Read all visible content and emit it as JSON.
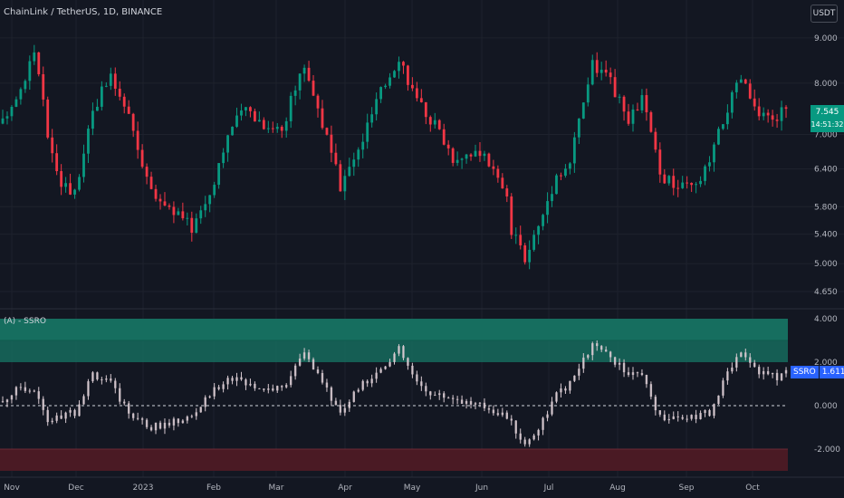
{
  "header": {
    "symbol_title": "ChainLink / TetherUS, 1D, BINANCE",
    "currency_button": "USDT"
  },
  "price_axis": {
    "ticks": [
      "9.000",
      "8.000",
      "7.000",
      "6.400",
      "5.800",
      "5.400",
      "5.000",
      "4.650"
    ]
  },
  "last_price": {
    "value": "7.545",
    "countdown": "14:51:32"
  },
  "indicator": {
    "title": "(A) - SSRO",
    "name": "SSRO",
    "value": "1.611",
    "ticks": [
      "4.000",
      "2.000",
      "0.000",
      "-2.000"
    ]
  },
  "time_axis": [
    "Nov",
    "Dec",
    "2023",
    "Feb",
    "Mar",
    "Apr",
    "May",
    "Jun",
    "Jul",
    "Aug",
    "Sep",
    "Oct"
  ],
  "colors": {
    "background": "#131722",
    "up": "#089981",
    "down": "#f23645",
    "osc_bar": "#d6c8cf",
    "upper_zone": "#166e5f",
    "lower_zone": "#4a1a24",
    "badge": "#2962ff"
  },
  "chart_data": {
    "type": "candlestick",
    "price_path": [
      [
        0,
        7.2
      ],
      [
        4,
        7.9
      ],
      [
        7,
        8.7
      ],
      [
        10,
        7.0
      ],
      [
        13,
        6.2
      ],
      [
        16,
        6.0
      ],
      [
        20,
        7.5
      ],
      [
        24,
        8.1
      ],
      [
        28,
        7.3
      ],
      [
        33,
        6.0
      ],
      [
        37,
        5.8
      ],
      [
        42,
        5.5
      ],
      [
        46,
        6.0
      ],
      [
        50,
        7.0
      ],
      [
        54,
        7.5
      ],
      [
        58,
        7.2
      ],
      [
        62,
        7.1
      ],
      [
        67,
        8.4
      ],
      [
        71,
        7.2
      ],
      [
        75,
        6.1
      ],
      [
        79,
        6.7
      ],
      [
        83,
        7.6
      ],
      [
        88,
        8.6
      ],
      [
        92,
        7.6
      ],
      [
        96,
        7.2
      ],
      [
        100,
        6.6
      ],
      [
        104,
        6.7
      ],
      [
        108,
        6.5
      ],
      [
        112,
        5.9
      ],
      [
        113,
        5.4
      ],
      [
        116,
        5.1
      ],
      [
        119,
        5.5
      ],
      [
        123,
        6.3
      ],
      [
        126,
        6.5
      ],
      [
        131,
        8.4
      ],
      [
        135,
        8.0
      ],
      [
        139,
        7.2
      ],
      [
        142,
        7.7
      ],
      [
        146,
        6.3
      ],
      [
        150,
        6.1
      ],
      [
        154,
        6.1
      ],
      [
        157,
        6.5
      ],
      [
        161,
        7.5
      ],
      [
        164,
        8.1
      ],
      [
        168,
        7.3
      ],
      [
        172,
        7.3
      ],
      [
        174,
        7.6
      ]
    ],
    "oscillator_path": [
      [
        0,
        0.2
      ],
      [
        4,
        0.9
      ],
      [
        7,
        0.7
      ],
      [
        10,
        -0.7
      ],
      [
        13,
        -0.5
      ],
      [
        16,
        -0.3
      ],
      [
        20,
        1.5
      ],
      [
        24,
        1.0
      ],
      [
        28,
        -0.3
      ],
      [
        33,
        -1.0
      ],
      [
        37,
        -0.8
      ],
      [
        42,
        -0.5
      ],
      [
        46,
        0.5
      ],
      [
        50,
        1.3
      ],
      [
        54,
        1.0
      ],
      [
        58,
        0.8
      ],
      [
        62,
        0.8
      ],
      [
        67,
        2.4
      ],
      [
        71,
        1.0
      ],
      [
        75,
        -0.3
      ],
      [
        79,
        0.8
      ],
      [
        83,
        1.5
      ],
      [
        88,
        2.6
      ],
      [
        92,
        1.0
      ],
      [
        96,
        0.5
      ],
      [
        100,
        0.4
      ],
      [
        104,
        0.1
      ],
      [
        108,
        -0.1
      ],
      [
        112,
        -0.5
      ],
      [
        116,
        -1.8
      ],
      [
        119,
        -1.0
      ],
      [
        123,
        0.5
      ],
      [
        126,
        1.0
      ],
      [
        131,
        2.8
      ],
      [
        135,
        2.2
      ],
      [
        139,
        1.4
      ],
      [
        142,
        1.3
      ],
      [
        146,
        -0.5
      ],
      [
        150,
        -0.5
      ],
      [
        154,
        -0.5
      ],
      [
        157,
        -0.3
      ],
      [
        161,
        1.5
      ],
      [
        164,
        2.6
      ],
      [
        168,
        1.6
      ],
      [
        172,
        1.3
      ],
      [
        174,
        1.6
      ]
    ],
    "price_range": [
      4.65,
      9.3
    ],
    "oscillator_range": [
      -3.0,
      4.0
    ],
    "oscillator_zones": {
      "upper": [
        2.0,
        4.0
      ],
      "upper_mid": 3.0,
      "lower": [
        -3.0,
        -2.0
      ],
      "zero_line": 0.0
    }
  }
}
